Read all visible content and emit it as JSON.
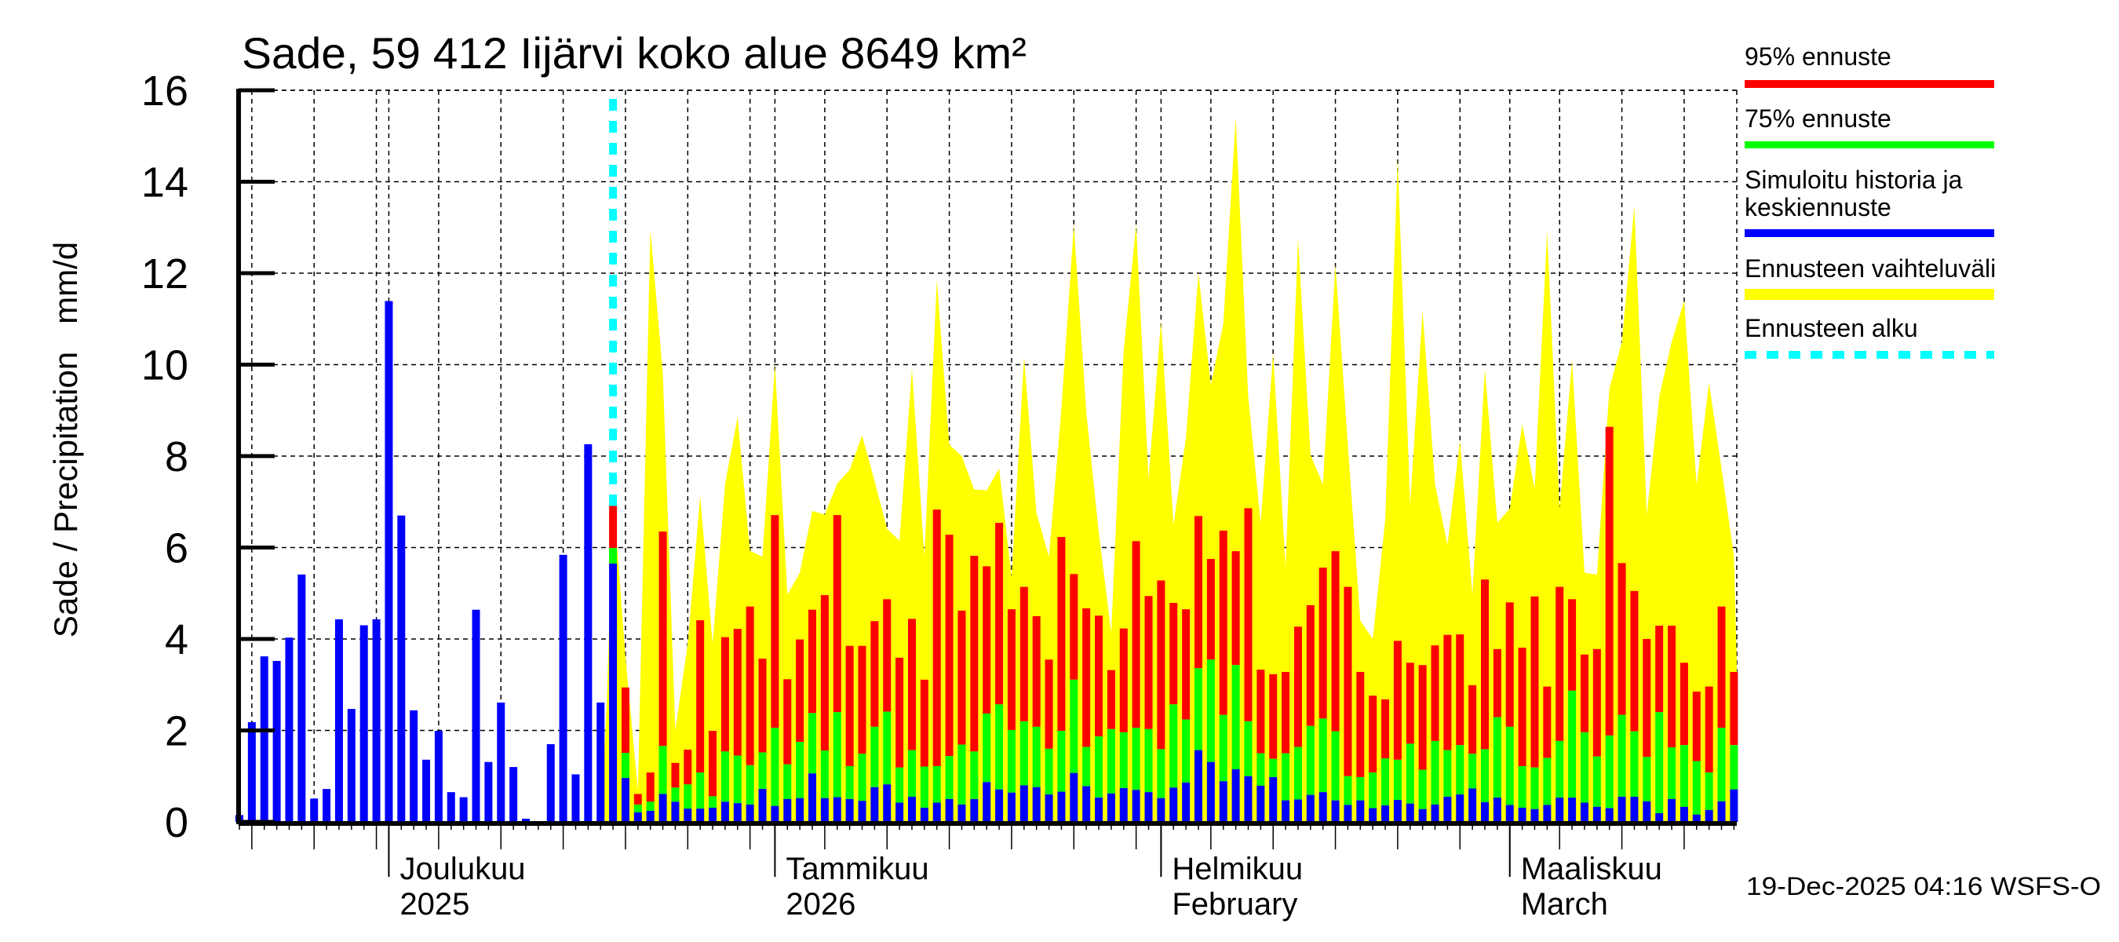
{
  "chart_data": {
    "type": "bar",
    "title": "Sade, 59 412 Iijärvi koko alue 8649 km²",
    "ylabel": "Sade / Precipitation   mm/d",
    "xlabel": "",
    "ylim": [
      0,
      16
    ],
    "yticks": [
      "0",
      "2",
      "4",
      "6",
      "8",
      "10",
      "12",
      "14",
      "16"
    ],
    "grid": true,
    "x_range": [
      "2025-11-19",
      "2026-03-19"
    ],
    "forecast_start": "2025-12-19",
    "month_labels": [
      {
        "date": "2025-12-01",
        "line1": "Joulukuu",
        "line2": "2025"
      },
      {
        "date": "2026-01-01",
        "line1": "Tammikuu",
        "line2": "2026"
      },
      {
        "date": "2026-02-01",
        "line1": "Helmikuu",
        "line2": "February"
      },
      {
        "date": "2026-03-01",
        "line1": "Maaliskuu",
        "line2": "March"
      }
    ],
    "history": {
      "start": "2025-11-19",
      "values": [
        0.15,
        2.18,
        3.62,
        3.52,
        4.03,
        5.41,
        0.51,
        0.72,
        4.43,
        2.47,
        4.3,
        4.43,
        11.39,
        6.7,
        2.44,
        1.36,
        1.99,
        0.65,
        0.54,
        4.64,
        1.31,
        2.61,
        1.2,
        0.07,
        0,
        1.7,
        5.84,
        1.04,
        8.26,
        2.61
      ]
    },
    "forecast": {
      "start": "2025-12-19",
      "mean": [
        5.65,
        0.96,
        0.21,
        0.24,
        0.61,
        0.44,
        0.29,
        0.29,
        0.31,
        0.44,
        0.41,
        0.38,
        0.72,
        0.35,
        0.5,
        0.52,
        1.06,
        0.52,
        0.54,
        0.5,
        0.46,
        0.76,
        0.82,
        0.42,
        0.55,
        0.31,
        0.42,
        0.5,
        0.38,
        0.5,
        0.87,
        0.71,
        0.64,
        0.8,
        0.76,
        0.6,
        0.66,
        1.07,
        0.78,
        0.53,
        0.62,
        0.74,
        0.7,
        0.65,
        0.52,
        0.75,
        0.86,
        1.57,
        1.31,
        0.89,
        1.15,
        1.0,
        0.79,
        0.98,
        0.47,
        0.49,
        0.59,
        0.65,
        0.47,
        0.37,
        0.47,
        0.3,
        0.36,
        0.48,
        0.4,
        0.28,
        0.38,
        0.55,
        0.6,
        0.73,
        0.43,
        0.53,
        0.37,
        0.31,
        0.28,
        0.37,
        0.53,
        0.53,
        0.42,
        0.33,
        0.3,
        0.55,
        0.55,
        0.45,
        0.19,
        0.5,
        0.33,
        0.16,
        0.26,
        0.45,
        0.71
      ],
      "p75": [
        5.99,
        1.51,
        0.38,
        0.44,
        1.66,
        0.75,
        0.82,
        1.08,
        0.56,
        1.54,
        1.45,
        1.24,
        1.52,
        2.06,
        1.26,
        1.75,
        2.38,
        1.56,
        2.4,
        1.22,
        1.49,
        2.08,
        2.41,
        1.19,
        1.57,
        1.21,
        1.22,
        1.44,
        1.69,
        1.54,
        2.37,
        2.57,
        2.01,
        2.2,
        2.08,
        1.6,
        1.99,
        3.11,
        1.64,
        1.87,
        2.03,
        1.96,
        2.06,
        2.03,
        1.59,
        2.57,
        2.24,
        3.36,
        3.55,
        2.34,
        3.43,
        2.2,
        1.5,
        1.38,
        1.5,
        1.64,
        2.1,
        2.26,
        1.98,
        1.0,
        0.98,
        1.08,
        1.39,
        1.36,
        1.71,
        1.14,
        1.77,
        1.57,
        1.68,
        1.49,
        1.59,
        2.29,
        2.08,
        1.22,
        1.19,
        1.4,
        1.77,
        2.87,
        1.96,
        1.43,
        1.89,
        2.34,
        1.98,
        1.42,
        2.4,
        1.63,
        1.68,
        1.33,
        1.08,
        2.06,
        1.68
      ],
      "p95": [
        6.91,
        2.94,
        0.61,
        1.08,
        6.35,
        1.29,
        1.58,
        4.41,
        1.99,
        4.04,
        4.22,
        4.71,
        3.57,
        6.71,
        3.12,
        3.99,
        4.64,
        4.96,
        6.71,
        3.85,
        3.85,
        4.39,
        4.87,
        3.59,
        4.44,
        3.11,
        6.83,
        6.28,
        4.62,
        5.82,
        5.59,
        6.54,
        4.65,
        5.14,
        4.5,
        3.55,
        6.23,
        5.42,
        4.67,
        4.51,
        3.32,
        4.23,
        6.14,
        4.94,
        5.28,
        4.79,
        4.65,
        6.69,
        5.75,
        6.37,
        5.92,
        6.86,
        3.33,
        3.23,
        3.28,
        4.27,
        4.74,
        5.56,
        5.92,
        5.14,
        3.28,
        2.76,
        2.68,
        3.96,
        3.48,
        3.43,
        3.86,
        4.09,
        4.1,
        2.99,
        5.3,
        3.78,
        4.8,
        3.81,
        4.93,
        2.96,
        5.14,
        4.87,
        3.66,
        3.78,
        8.64,
        5.66,
        5.05,
        4.0,
        4.29,
        4.29,
        3.48,
        2.85,
        2.96,
        4.71,
        3.28
      ],
      "max": [
        7.2,
        3.6,
        0.7,
        12.96,
        9.8,
        2.0,
        3.9,
        7.13,
        3.9,
        7.4,
        8.85,
        5.93,
        5.8,
        10.0,
        4.97,
        5.45,
        6.8,
        6.72,
        7.4,
        7.7,
        8.45,
        7.46,
        6.41,
        6.15,
        9.91,
        5.8,
        11.85,
        8.25,
        8.0,
        7.27,
        7.25,
        7.73,
        5.36,
        10.16,
        6.76,
        5.8,
        9.04,
        13.06,
        8.95,
        6.33,
        4.14,
        10.3,
        13.06,
        7.5,
        10.96,
        6.5,
        8.4,
        12.0,
        9.56,
        10.9,
        15.4,
        9.3,
        6.54,
        10.26,
        5.58,
        12.76,
        8.03,
        7.38,
        12.19,
        8.25,
        4.4,
        4.0,
        6.6,
        14.5,
        6.94,
        11.18,
        7.38,
        6.06,
        8.34,
        4.97,
        9.91,
        6.54,
        6.85,
        8.69,
        7.29,
        12.93,
        6.85,
        10.09,
        5.45,
        5.41,
        9.48,
        10.5,
        13.46,
        6.72,
        9.3,
        10.5,
        11.4,
        7.38,
        9.6,
        7.73,
        5.8
      ]
    },
    "legend": {
      "placement": "right",
      "entries": [
        {
          "label": "95% ennuste",
          "color": "#ff0000",
          "style": "solid"
        },
        {
          "label": "75% ennuste",
          "color": "#00ff00",
          "style": "solid"
        },
        {
          "label_lines": [
            "Simuloitu historia ja",
            "keskiennuste"
          ],
          "color": "#0000ff",
          "style": "solid"
        },
        {
          "label": "Ennusteen vaihteluväli",
          "color": "#ffff00",
          "style": "solid"
        },
        {
          "label": "Ennusteen alku",
          "color": "#00ffff",
          "style": "dashed"
        }
      ]
    },
    "footer": "19-Dec-2025 04:16 WSFS-O"
  }
}
